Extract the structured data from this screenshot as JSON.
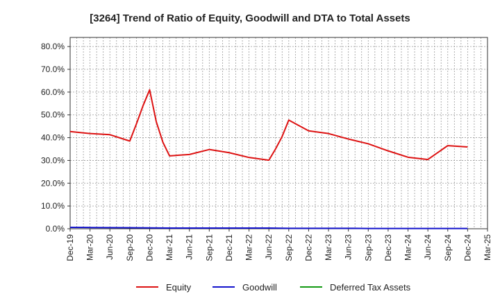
{
  "chart_data": {
    "type": "line",
    "title": "[3264]  Trend of Ratio of Equity, Goodwill and DTA to Total Assets",
    "xlabel": "",
    "ylabel": "",
    "ylim": [
      0,
      0.84
    ],
    "yticks": [
      "0.0%",
      "10.0%",
      "20.0%",
      "30.0%",
      "40.0%",
      "50.0%",
      "60.0%",
      "70.0%",
      "80.0%"
    ],
    "ytick_values": [
      0,
      0.1,
      0.2,
      0.3,
      0.4,
      0.5,
      0.6,
      0.7,
      0.8
    ],
    "xlim": [
      "2019-12",
      "2025-03"
    ],
    "xticks": [
      "Dec-19",
      "Mar-20",
      "Jun-20",
      "Sep-20",
      "Dec-20",
      "Mar-21",
      "Jun-21",
      "Sep-21",
      "Dec-21",
      "Mar-22",
      "Jun-22",
      "Sep-22",
      "Dec-22",
      "Mar-23",
      "Jun-23",
      "Sep-23",
      "Dec-23",
      "Mar-24",
      "Jun-24",
      "Sep-24",
      "Dec-24",
      "Mar-25"
    ],
    "grid": true,
    "legend_position": "bottom",
    "series": [
      {
        "name": "Equity",
        "color": "#dd1111",
        "points": [
          [
            "2019-12",
            0.427
          ],
          [
            "2020-03",
            0.418
          ],
          [
            "2020-06",
            0.413
          ],
          [
            "2020-09",
            0.385
          ],
          [
            "2020-10",
            0.46
          ],
          [
            "2020-11",
            0.54
          ],
          [
            "2020-12",
            0.61
          ],
          [
            "2021-01",
            0.47
          ],
          [
            "2021-02",
            0.38
          ],
          [
            "2021-03",
            0.32
          ],
          [
            "2021-06",
            0.326
          ],
          [
            "2021-09",
            0.348
          ],
          [
            "2021-12",
            0.334
          ],
          [
            "2022-03",
            0.313
          ],
          [
            "2022-06",
            0.301
          ],
          [
            "2022-07",
            0.35
          ],
          [
            "2022-08",
            0.405
          ],
          [
            "2022-09",
            0.477
          ],
          [
            "2022-12",
            0.43
          ],
          [
            "2023-03",
            0.418
          ],
          [
            "2023-06",
            0.394
          ],
          [
            "2023-09",
            0.373
          ],
          [
            "2023-12",
            0.342
          ],
          [
            "2024-03",
            0.314
          ],
          [
            "2024-06",
            0.304
          ],
          [
            "2024-09",
            0.365
          ],
          [
            "2024-12",
            0.359
          ]
        ]
      },
      {
        "name": "Goodwill",
        "color": "#1111cc",
        "points": [
          [
            "2019-12",
            0.006
          ],
          [
            "2020-03",
            0.0055
          ],
          [
            "2020-06",
            0.005
          ],
          [
            "2020-09",
            0.0045
          ],
          [
            "2020-12",
            0.004
          ],
          [
            "2021-03",
            0.003
          ],
          [
            "2021-06",
            0.003
          ],
          [
            "2021-09",
            0.003
          ],
          [
            "2021-12",
            0.003
          ],
          [
            "2022-03",
            0.003
          ],
          [
            "2022-06",
            0.003
          ],
          [
            "2022-09",
            0.002
          ],
          [
            "2022-12",
            0.002
          ],
          [
            "2023-03",
            0.002
          ],
          [
            "2023-06",
            0.002
          ],
          [
            "2023-09",
            0.001
          ],
          [
            "2023-12",
            0.001
          ],
          [
            "2024-03",
            0.001
          ],
          [
            "2024-06",
            0.001
          ],
          [
            "2024-09",
            0.001
          ],
          [
            "2024-12",
            0.001
          ]
        ]
      },
      {
        "name": "Deferred Tax Assets",
        "color": "#119911",
        "points": []
      }
    ]
  }
}
